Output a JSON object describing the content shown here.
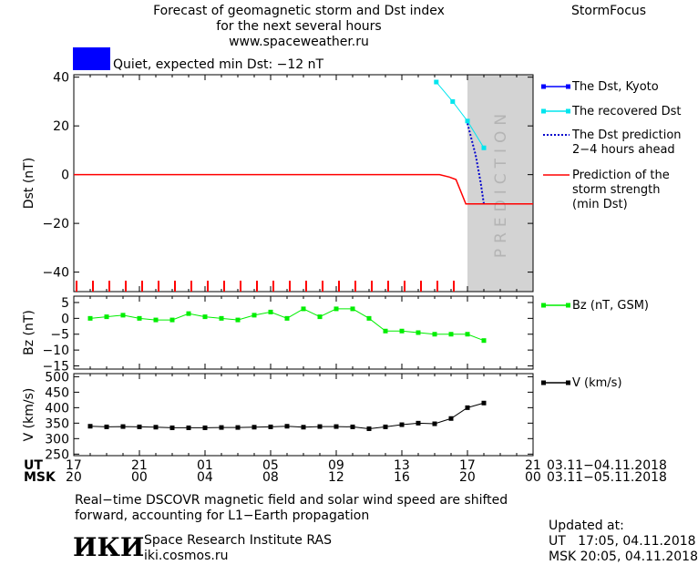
{
  "header": {
    "title_line1": "Forecast of geomagnetic storm and Dst index",
    "title_line2": "for the next several hours",
    "website": "www.spaceweather.ru",
    "brand": "StormFocus"
  },
  "status": {
    "text": "Quiet, expected min Dst: −12 nT",
    "color": "#0000ff"
  },
  "footer": {
    "note_line1": "Real−time DSCOVR magnetic field and solar wind speed are shifted",
    "note_line2": "forward, accounting for L1−Earth propagation",
    "institute": "Space Research Institute RAS",
    "institute_url": "iki.cosmos.ru",
    "logo_text": "ИКИ",
    "updated_label": "Updated at:",
    "updated_ut": "UT   17:05, 04.11.2018",
    "updated_msk": "MSK 20:05, 04.11.2018"
  },
  "time_axis": {
    "ut_label": "UT",
    "msk_label": "MSK",
    "ut_ticks": [
      "17",
      "21",
      "01",
      "05",
      "09",
      "13",
      "17",
      "21"
    ],
    "msk_ticks": [
      "20",
      "00",
      "04",
      "08",
      "12",
      "16",
      "20",
      "00"
    ],
    "ut_range": "03.11−04.11.2018",
    "msk_range": "03.11−05.11.2018"
  },
  "chart_data": [
    {
      "type": "line",
      "ylabel": "Dst (nT)",
      "ylim": [
        -48,
        41
      ],
      "yticks": [
        40,
        20,
        0,
        -20,
        -40
      ],
      "x_range_hours": [
        0,
        28
      ],
      "prediction_zone": {
        "x_start": 24,
        "x_end": 28,
        "label": "PREDICTION",
        "color": "#d3d3d3"
      },
      "series": [
        {
          "name": "The Dst, Kyoto",
          "color": "#0000ff",
          "x": [],
          "y": []
        },
        {
          "name": "The recovered Dst",
          "color": "#00e5ee",
          "x": [
            22.1,
            23.1,
            24.0,
            25.0
          ],
          "y": [
            38,
            30,
            22,
            11
          ]
        },
        {
          "name": "The Dst prediction 2−4 hours ahead",
          "color": "#0000cd",
          "x": [
            24.0,
            24.5,
            24.8,
            25.0
          ],
          "y": [
            21,
            8,
            -3,
            -12
          ]
        },
        {
          "name": "Prediction of the storm strength (min Dst)",
          "color": "#ff0000",
          "x": [
            0,
            22.3,
            22.9,
            23.3,
            23.9,
            25.4,
            28
          ],
          "y": [
            0,
            0,
            -1,
            -2,
            -12,
            -12,
            -12
          ]
        }
      ]
    },
    {
      "type": "line",
      "ylabel": "Bz (nT)",
      "ylim": [
        -16,
        7
      ],
      "yticks": [
        5,
        0,
        -5,
        -10,
        -15
      ],
      "x_range_hours": [
        0,
        28
      ],
      "series": [
        {
          "name": "Bz (nT, GSM)",
          "color": "#00ee00",
          "x": [
            1,
            2,
            3,
            4,
            5,
            6,
            7,
            8,
            9,
            10,
            11,
            12,
            13,
            14,
            15,
            16,
            17,
            18,
            19,
            20,
            21,
            22,
            23,
            24,
            25
          ],
          "y": [
            0,
            0.5,
            1,
            0,
            -0.5,
            -0.5,
            1.5,
            0.5,
            0,
            -0.5,
            1,
            2,
            0,
            3,
            0.5,
            3,
            3,
            0,
            -4,
            -4,
            -4.5,
            -5,
            -5,
            -5,
            -7
          ]
        }
      ]
    },
    {
      "type": "line",
      "ylabel": "V (km/s)",
      "ylim": [
        245,
        510
      ],
      "yticks": [
        500,
        450,
        400,
        350,
        300,
        250
      ],
      "x_range_hours": [
        0,
        28
      ],
      "series": [
        {
          "name": "V (km/s)",
          "color": "#000000",
          "x": [
            1,
            2,
            3,
            4,
            5,
            6,
            7,
            8,
            9,
            10,
            11,
            12,
            13,
            14,
            15,
            16,
            17,
            18,
            19,
            20,
            21,
            22,
            23,
            24,
            25
          ],
          "y": [
            340,
            338,
            339,
            338,
            337,
            335,
            335,
            335,
            336,
            336,
            337,
            338,
            340,
            337,
            339,
            339,
            338,
            332,
            338,
            345,
            350,
            348,
            365,
            400,
            415
          ]
        }
      ]
    }
  ]
}
